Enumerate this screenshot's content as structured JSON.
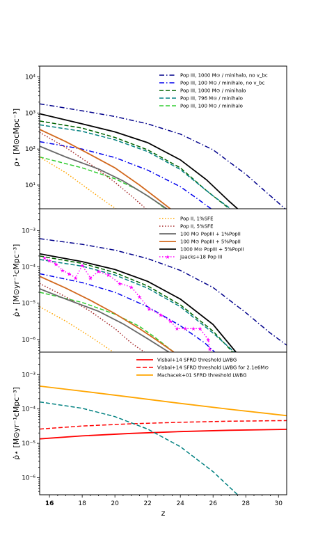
{
  "chart_data": [
    {
      "type": "line",
      "panel": "top",
      "ylabel": "ρ⋆ [M⊙cMpc⁻³]",
      "yscale": "log",
      "xlim": [
        15.4,
        30.5
      ],
      "ylim": [
        2.2,
        20000
      ],
      "yticks": [
        {
          "v": 10,
          "label": "10¹"
        },
        {
          "v": 100,
          "label": "10²"
        },
        {
          "v": 1000,
          "label": "10³"
        },
        {
          "v": 10000,
          "label": "10⁴"
        }
      ],
      "legend_position": "upper right",
      "series": [
        {
          "name": "Pop III, 1000 M⊙ / minihalo, no v_bc",
          "color": "#00008b",
          "style": "dashdot",
          "points": [
            [
              15.4,
              1800
            ],
            [
              18,
              1150
            ],
            [
              20,
              800
            ],
            [
              22,
              500
            ],
            [
              24,
              260
            ],
            [
              26,
              95
            ],
            [
              28,
              20
            ],
            [
              29,
              8
            ],
            [
              30,
              3.2
            ],
            [
              30.5,
              2
            ]
          ]
        },
        {
          "name": "Pop III, 100 M⊙ / minihalo, no v_bc",
          "color": "#0000ee",
          "style": "dashdot",
          "points": [
            [
              15.4,
              160
            ],
            [
              18,
              100
            ],
            [
              20,
              58
            ],
            [
              22,
              26
            ],
            [
              24,
              9
            ],
            [
              25,
              4.3
            ],
            [
              26,
              2
            ]
          ]
        },
        {
          "name": "Pop III, 1000 M⊙ / minihalo",
          "color": "#006400",
          "style": "dashed",
          "points": [
            [
              15.4,
              600
            ],
            [
              18,
              380
            ],
            [
              20,
              210
            ],
            [
              22,
              95
            ],
            [
              24,
              30
            ],
            [
              25.6,
              7
            ],
            [
              27,
              2.2
            ]
          ]
        },
        {
          "name": "Pop III, 796 M⊙ / minihalo",
          "color": "#008080",
          "style": "dashed",
          "points": [
            [
              15.4,
              470
            ],
            [
              18,
              310
            ],
            [
              20,
              180
            ],
            [
              22,
              85
            ],
            [
              24,
              27
            ],
            [
              26,
              5
            ],
            [
              27.2,
              2
            ]
          ]
        },
        {
          "name": "Pop III, 100 M⊙ / minihalo",
          "color": "#32cd32",
          "style": "dashed",
          "points": [
            [
              15.4,
              60
            ],
            [
              18,
              30
            ],
            [
              20,
              15
            ],
            [
              21.5,
              7
            ],
            [
              22.5,
              3.5
            ],
            [
              23.2,
              2
            ]
          ]
        },
        {
          "name": "Pop II, 1%SFE",
          "color": "#ffa500",
          "style": "dotted",
          "points": [
            [
              15.4,
              60
            ],
            [
              17,
              22
            ],
            [
              18.5,
              7
            ],
            [
              19.5,
              3.3
            ],
            [
              20.2,
              2
            ]
          ]
        },
        {
          "name": "Pop II, 5%SFE",
          "color": "#a52a2a",
          "style": "dotted",
          "points": [
            [
              15.4,
              290
            ],
            [
              17,
              110
            ],
            [
              18.5,
              38
            ],
            [
              20,
              12
            ],
            [
              21,
              5
            ],
            [
              22,
              2
            ]
          ]
        },
        {
          "name": "100 M⊙ PopIII + 1%PopII",
          "color": "#696969",
          "style": "solid",
          "points": [
            [
              15.4,
              120
            ],
            [
              17,
              60
            ],
            [
              19,
              28
            ],
            [
              20.5,
              13
            ],
            [
              22,
              5
            ],
            [
              23.3,
              2
            ]
          ]
        },
        {
          "name": "100 M⊙ PopIII + 5%PopII",
          "color": "#d2691e",
          "style": "solid",
          "points": [
            [
              15.4,
              350
            ],
            [
              17,
              160
            ],
            [
              18.5,
              70
            ],
            [
              20,
              30
            ],
            [
              21.5,
              10
            ],
            [
              22.5,
              4.5
            ],
            [
              23.5,
              2
            ]
          ]
        },
        {
          "name": "1000 M⊙ PopIII + 5%PopII",
          "color": "#000000",
          "style": "solid",
          "points": [
            [
              15.4,
              950
            ],
            [
              18,
              500
            ],
            [
              20,
              300
            ],
            [
              22,
              150
            ],
            [
              24,
              50
            ],
            [
              25.6,
              14
            ],
            [
              27,
              3.5
            ],
            [
              27.6,
              2
            ]
          ]
        }
      ]
    },
    {
      "type": "line",
      "panel": "middle",
      "ylabel": "ρ̇⋆ [M⊙yr⁻¹cMpc⁻³]",
      "yscale": "log",
      "xlim": [
        15.4,
        30.5
      ],
      "ylim": [
        4.5e-07,
        0.004
      ],
      "yticks": [
        {
          "v": 1e-06,
          "label": "10⁻⁶"
        },
        {
          "v": 1e-05,
          "label": "10⁻⁵"
        },
        {
          "v": 0.0001,
          "label": "10⁻⁴"
        },
        {
          "v": 0.001,
          "label": "10⁻³"
        }
      ],
      "legend_position": "upper right",
      "series": [
        {
          "name": "Pop III, 1000 M⊙ / minihalo, no v_bc",
          "color": "#00008b",
          "style": "dashdot",
          "points": [
            [
              15.4,
              0.0006
            ],
            [
              18,
              0.00042
            ],
            [
              20,
              0.00029
            ],
            [
              22,
              0.00017
            ],
            [
              24,
              8e-05
            ],
            [
              26,
              2.7e-05
            ],
            [
              28,
              5.5e-06
            ],
            [
              29.5,
              1.5e-06
            ],
            [
              30.5,
              7e-07
            ]
          ]
        },
        {
          "name": "Pop III, 100 M⊙ / minihalo, no v_bc",
          "color": "#0000ee",
          "style": "dashdot",
          "points": [
            [
              15.4,
              6.5e-05
            ],
            [
              18,
              3.7e-05
            ],
            [
              20,
              2e-05
            ],
            [
              22,
              8e-06
            ],
            [
              24,
              2.4e-06
            ],
            [
              25.5,
              8e-07
            ],
            [
              26.1,
              4.5e-07
            ]
          ]
        },
        {
          "name": "Pop III, 1000 M⊙ / minihalo",
          "color": "#006400",
          "style": "dashed",
          "points": [
            [
              15.4,
              0.0002
            ],
            [
              18,
              0.000125
            ],
            [
              20,
              7e-05
            ],
            [
              22,
              3e-05
            ],
            [
              24,
              9e-06
            ],
            [
              26,
              1.7e-06
            ],
            [
              27.2,
              4.5e-07
            ]
          ]
        },
        {
          "name": "Pop III, 796 M⊙ / minihalo",
          "color": "#008080",
          "style": "dashed",
          "points": [
            [
              15.4,
              0.00016
            ],
            [
              18,
              0.000105
            ],
            [
              20,
              6e-05
            ],
            [
              22,
              2.6e-05
            ],
            [
              24,
              8e-06
            ],
            [
              26,
              1.5e-06
            ],
            [
              27.3,
              4.5e-07
            ]
          ]
        },
        {
          "name": "Pop III, 100 M⊙ / minihalo",
          "color": "#32cd32",
          "style": "dashed",
          "points": [
            [
              15.4,
              2e-05
            ],
            [
              18,
              1.05e-05
            ],
            [
              20,
              5e-06
            ],
            [
              21.5,
              2.3e-06
            ],
            [
              22.5,
              1.1e-06
            ],
            [
              23.6,
              4.5e-07
            ]
          ]
        },
        {
          "name": "Pop II, 1%SFE",
          "color": "#ffa500",
          "style": "dotted",
          "points": [
            [
              15.4,
              8e-06
            ],
            [
              17,
              3.2e-06
            ],
            [
              18.5,
              1.2e-06
            ],
            [
              19.5,
              6e-07
            ],
            [
              19.9,
              4.5e-07
            ]
          ]
        },
        {
          "name": "Pop II, 5%SFE",
          "color": "#a52a2a",
          "style": "dotted",
          "points": [
            [
              15.4,
              3.5e-05
            ],
            [
              17,
              1.5e-05
            ],
            [
              18.5,
              6e-06
            ],
            [
              20,
              2e-06
            ],
            [
              21,
              8e-07
            ],
            [
              21.8,
              4.5e-07
            ]
          ]
        },
        {
          "name": "100 M⊙ PopIII + 1%PopII",
          "color": "#696969",
          "style": "solid",
          "points": [
            [
              15.4,
              2.5e-05
            ],
            [
              17,
              1.3e-05
            ],
            [
              19,
              6e-06
            ],
            [
              20.5,
              2.7e-06
            ],
            [
              22,
              1.05e-06
            ],
            [
              23.3,
              4.5e-07
            ]
          ]
        },
        {
          "name": "100 M⊙ PopIII + 5%PopII",
          "color": "#d2691e",
          "style": "solid",
          "points": [
            [
              15.4,
              5.5e-05
            ],
            [
              17,
              2.6e-05
            ],
            [
              18.5,
              1.2e-05
            ],
            [
              20,
              5.2e-06
            ],
            [
              21.5,
              2e-06
            ],
            [
              22.5,
              1e-06
            ],
            [
              23.6,
              4.5e-07
            ]
          ]
        },
        {
          "name": "1000 M⊙ PopIII + 5%PopII",
          "color": "#000000",
          "style": "solid",
          "points": [
            [
              15.4,
              0.00023
            ],
            [
              18,
              0.00014
            ],
            [
              20,
              8.5e-05
            ],
            [
              22,
              4e-05
            ],
            [
              24,
              1.3e-05
            ],
            [
              26,
              2.6e-06
            ],
            [
              27.4,
              4.5e-07
            ]
          ]
        },
        {
          "name": "Jaacks+18 Pop III",
          "color": "#ff00ff",
          "style": "dotted",
          "marker": "star",
          "points": [
            [
              15.7,
              0.00018
            ],
            [
              16,
              0.00015
            ],
            [
              16.4,
              0.00012
            ],
            [
              16.8,
              8e-05
            ],
            [
              17.2,
              6.5e-05
            ],
            [
              17.6,
              5e-05
            ],
            [
              18,
              0.00011
            ],
            [
              18.5,
              5e-05
            ],
            [
              19,
              7.5e-05
            ],
            [
              19.6,
              6e-05
            ],
            [
              20.3,
              3.5e-05
            ],
            [
              21,
              2.8e-05
            ],
            [
              21.5,
              1.5e-05
            ],
            [
              22.1,
              7e-06
            ],
            [
              22.8,
              4.8e-06
            ],
            [
              23.4,
              3.2e-06
            ],
            [
              23.8,
              2e-06
            ],
            [
              24.3,
              2e-06
            ],
            [
              24.8,
              2e-06
            ],
            [
              25.2,
              2e-06
            ],
            [
              25.7,
              1e-06
            ],
            [
              25.8,
              5.5e-07
            ]
          ]
        }
      ]
    },
    {
      "type": "line",
      "panel": "bottom",
      "xlabel": "z",
      "ylabel": "ρ̇⋆ [M⊙yr⁻¹cMpc⁻³]",
      "yscale": "log",
      "xlim": [
        15.4,
        30.5
      ],
      "ylim": [
        3.2e-07,
        0.0045
      ],
      "xticks": [
        16,
        18,
        20,
        22,
        24,
        26,
        28,
        30
      ],
      "yticks": [
        {
          "v": 1e-06,
          "label": "10⁻⁶"
        },
        {
          "v": 1e-05,
          "label": "10⁻⁵"
        },
        {
          "v": 0.0001,
          "label": "10⁻⁴"
        },
        {
          "v": 0.001,
          "label": "10⁻³"
        }
      ],
      "legend_position": "upper right",
      "series": [
        {
          "name": "Visbal+14 SFRD threshold LWBG",
          "color": "#ff0000",
          "style": "solid",
          "points": [
            [
              15.4,
              1.35e-05
            ],
            [
              18,
              1.65e-05
            ],
            [
              21,
              1.95e-05
            ],
            [
              24,
              2.2e-05
            ],
            [
              27,
              2.4e-05
            ],
            [
              30.5,
              2.55e-05
            ]
          ]
        },
        {
          "name": "Visbal+14 SFRD threshold LWBG for 2.1e6M⊙",
          "color": "#ff0000",
          "style": "dashed",
          "points": [
            [
              15.4,
              2.6e-05
            ],
            [
              18,
              3.2e-05
            ],
            [
              21,
              3.7e-05
            ],
            [
              24,
              4.1e-05
            ],
            [
              27,
              4.4e-05
            ],
            [
              30.5,
              4.6e-05
            ]
          ]
        },
        {
          "name": "Machacek+01 SFRD threshold LWBG",
          "color": "#ffa500",
          "style": "solid",
          "points": [
            [
              15.4,
              0.00046
            ],
            [
              18,
              0.00033
            ],
            [
              21,
              0.00022
            ],
            [
              24,
              0.000145
            ],
            [
              27,
              9.8e-05
            ],
            [
              30.5,
              6.4e-05
            ]
          ]
        },
        {
          "name": "",
          "color": "#008080",
          "style": "dashed",
          "points": [
            [
              15.4,
              0.00016
            ],
            [
              18,
              0.000105
            ],
            [
              20,
              6e-05
            ],
            [
              22,
              2.6e-05
            ],
            [
              24,
              8e-06
            ],
            [
              26,
              1.5e-06
            ],
            [
              27.5,
              3.2e-07
            ]
          ]
        }
      ]
    }
  ]
}
